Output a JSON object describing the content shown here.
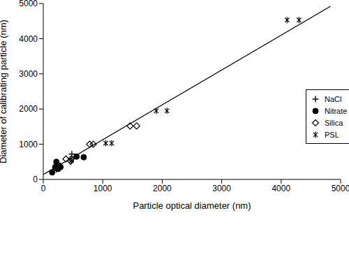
{
  "chart_data": {
    "type": "scatter",
    "x_label": "Particle optical diameter (nm)",
    "y_label": "Diameter of calibrating particle (nm)",
    "xlim": [
      0,
      5000
    ],
    "ylim": [
      0,
      5000
    ],
    "xticks": [
      0,
      1000,
      2000,
      3000,
      4000,
      5000
    ],
    "yticks": [
      0,
      1000,
      2000,
      3000,
      4000,
      5000
    ],
    "grid": false,
    "legend": "right",
    "series": [
      {
        "name": "NaCl",
        "color": "#000000",
        "marker": "plus",
        "x": [
          480,
          240
        ],
        "values": [
          720,
          350
        ]
      },
      {
        "name": "Nitrate",
        "color": "#000000",
        "marker": "circle",
        "x": [
          150,
          200,
          220,
          260,
          290,
          250,
          560,
          680
        ],
        "values": [
          200,
          350,
          500,
          400,
          350,
          300,
          650,
          630
        ]
      },
      {
        "name": "Silica",
        "color": "#000000",
        "marker": "diamond",
        "x": [
          270,
          380,
          460,
          470,
          780,
          840,
          1460,
          1570
        ],
        "values": [
          350,
          580,
          520,
          580,
          1000,
          1000,
          1520,
          1520
        ]
      },
      {
        "name": "PSL",
        "color": "#000000",
        "marker": "asterisk",
        "x": [
          220,
          470,
          1050,
          1150,
          1900,
          2080,
          4100,
          4300
        ],
        "values": [
          280,
          530,
          1030,
          1030,
          1950,
          1950,
          4530,
          4530
        ]
      }
    ],
    "fit_line": {
      "color": "#000000",
      "x": [
        0,
        4830
      ],
      "values": [
        140,
        4920
      ]
    }
  }
}
